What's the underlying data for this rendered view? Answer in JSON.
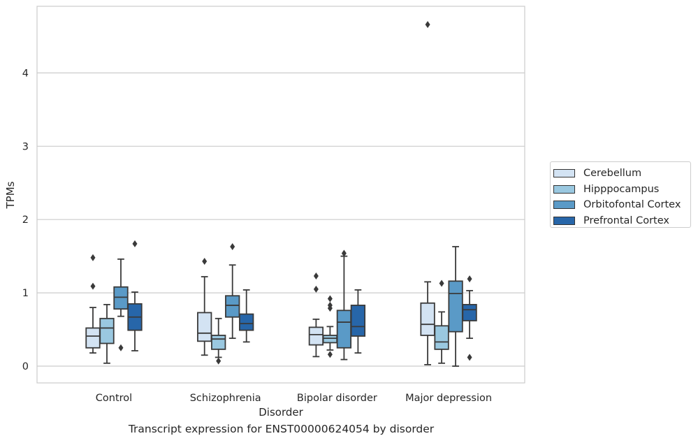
{
  "chart_data": {
    "type": "box",
    "title": "",
    "caption": "Transcript expression for ENST00000624054 by disorder",
    "xlabel": "Disorder",
    "ylabel": "TPMs",
    "ylim": [
      -0.22,
      4.9
    ],
    "yticks": [
      0,
      1,
      2,
      3,
      4
    ],
    "grid": "horizontal",
    "legend_position": "right",
    "categories": [
      "Control",
      "Schizophrenia",
      "Bipolar disorder",
      "Major depression"
    ],
    "series": [
      {
        "name": "Cerebellum",
        "color": "#d3e3f3",
        "boxes": [
          {
            "min": 0.18,
            "q1": 0.25,
            "median": 0.41,
            "q3": 0.52,
            "max": 0.8,
            "outliers": [
              1.09,
              1.48
            ]
          },
          {
            "min": 0.15,
            "q1": 0.34,
            "median": 0.45,
            "q3": 0.73,
            "max": 1.22,
            "outliers": [
              1.43
            ]
          },
          {
            "min": 0.13,
            "q1": 0.29,
            "median": 0.43,
            "q3": 0.53,
            "max": 0.64,
            "outliers": [
              1.05,
              1.23
            ]
          },
          {
            "min": 0.02,
            "q1": 0.42,
            "median": 0.57,
            "q3": 0.86,
            "max": 1.15,
            "outliers": [
              4.66
            ]
          }
        ]
      },
      {
        "name": "Hipppocampus",
        "color": "#9ac8e0",
        "boxes": [
          {
            "min": 0.04,
            "q1": 0.31,
            "median": 0.52,
            "q3": 0.65,
            "max": 0.84,
            "outliers": []
          },
          {
            "min": 0.12,
            "q1": 0.23,
            "median": 0.37,
            "q3": 0.42,
            "max": 0.65,
            "outliers": [
              0.07
            ]
          },
          {
            "min": 0.22,
            "q1": 0.32,
            "median": 0.38,
            "q3": 0.42,
            "max": 0.54,
            "outliers": [
              0.16,
              0.79,
              0.83,
              0.92
            ]
          },
          {
            "min": 0.04,
            "q1": 0.23,
            "median": 0.33,
            "q3": 0.55,
            "max": 0.74,
            "outliers": [
              1.13
            ]
          }
        ]
      },
      {
        "name": "Orbitofontal Cortex",
        "color": "#5a9ac7",
        "boxes": [
          {
            "min": 0.68,
            "q1": 0.78,
            "median": 0.94,
            "q3": 1.08,
            "max": 1.46,
            "outliers": [
              0.25
            ]
          },
          {
            "min": 0.38,
            "q1": 0.67,
            "median": 0.83,
            "q3": 0.96,
            "max": 1.38,
            "outliers": [
              1.63
            ]
          },
          {
            "min": 0.09,
            "q1": 0.25,
            "median": 0.6,
            "q3": 0.76,
            "max": 1.5,
            "outliers": [
              1.54
            ]
          },
          {
            "min": 0.0,
            "q1": 0.47,
            "median": 0.99,
            "q3": 1.16,
            "max": 1.63,
            "outliers": []
          }
        ]
      },
      {
        "name": "Prefrontal Cortex",
        "color": "#2766a9",
        "boxes": [
          {
            "min": 0.21,
            "q1": 0.49,
            "median": 0.67,
            "q3": 0.85,
            "max": 1.01,
            "outliers": [
              1.67
            ]
          },
          {
            "min": 0.33,
            "q1": 0.49,
            "median": 0.58,
            "q3": 0.71,
            "max": 1.04,
            "outliers": []
          },
          {
            "min": 0.18,
            "q1": 0.41,
            "median": 0.54,
            "q3": 0.83,
            "max": 1.04,
            "outliers": []
          },
          {
            "min": 0.38,
            "q1": 0.62,
            "median": 0.77,
            "q3": 0.84,
            "max": 1.03,
            "outliers": [
              0.12,
              1.19
            ]
          }
        ]
      }
    ]
  }
}
